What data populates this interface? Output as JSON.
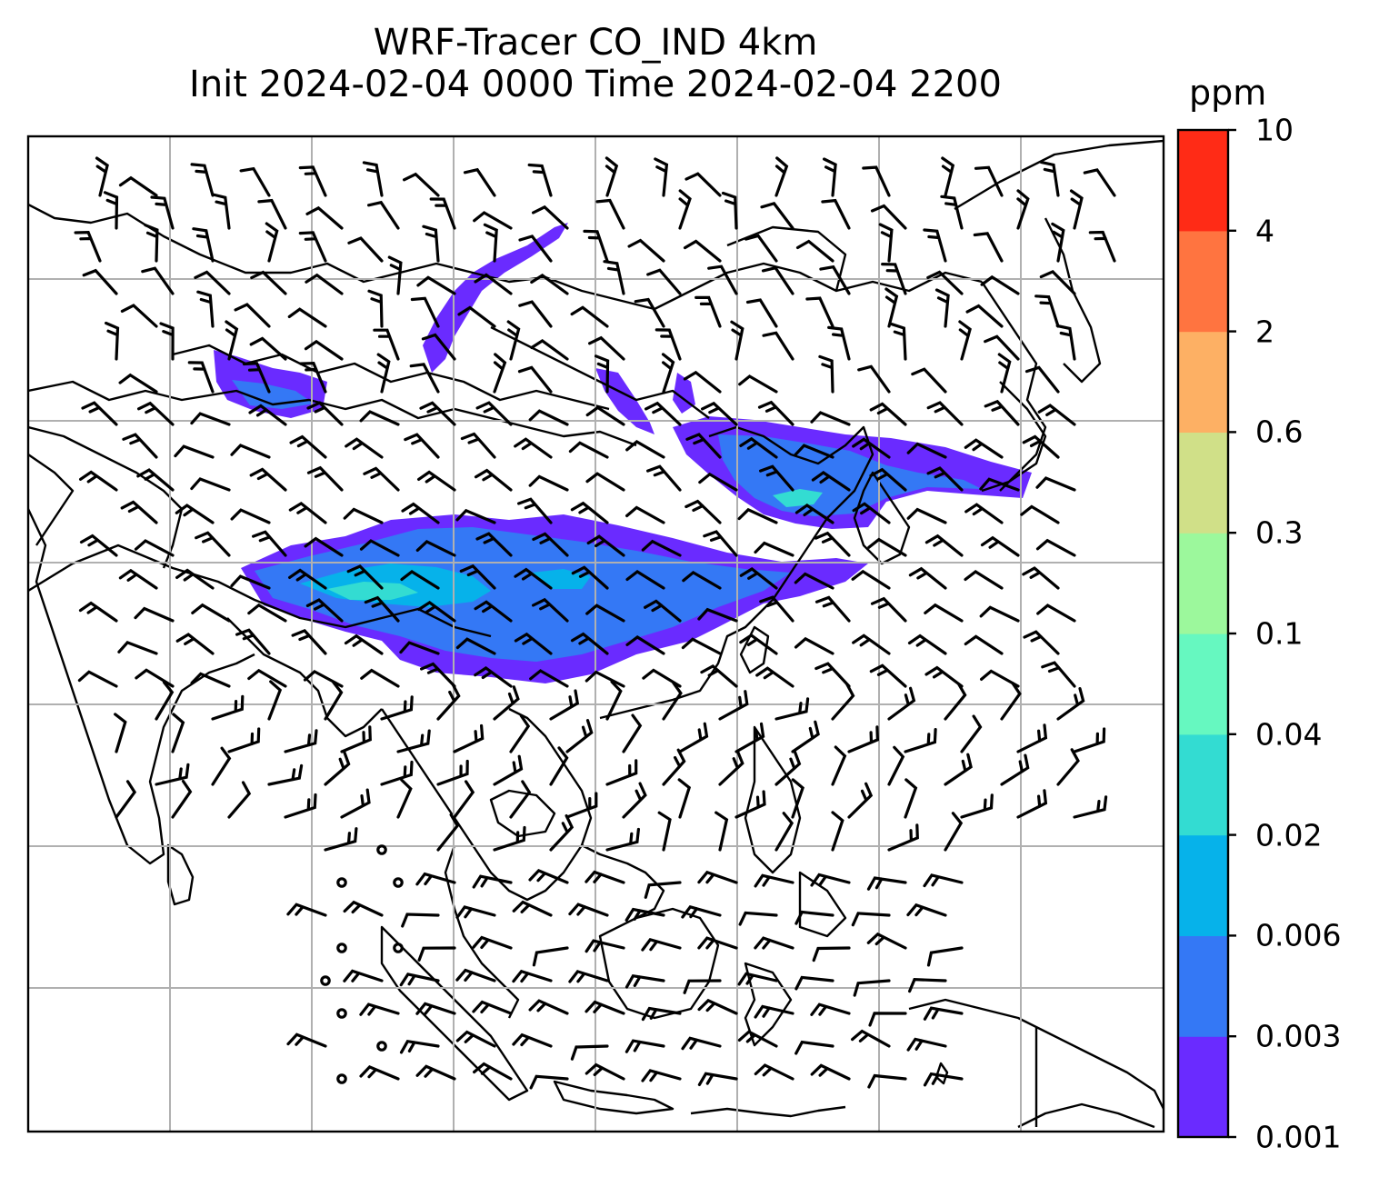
{
  "title": {
    "line1": "WRF-Tracer CO_IND 4km",
    "line2": "Init 2024-02-04 0000 Time 2024-02-04 2200"
  },
  "colorbar": {
    "unit": "ppm",
    "ticks": [
      "0.001",
      "0.003",
      "0.006",
      "0.02",
      "0.04",
      "0.1",
      "0.3",
      "0.6",
      "2",
      "4",
      "10"
    ],
    "colors": [
      "#6a2bff",
      "#3478f5",
      "#06b2ea",
      "#33dcd2",
      "#66f8c0",
      "#9cf89c",
      "#d0e088",
      "#fdb064",
      "#ff7440",
      "#ff2b16"
    ]
  },
  "map": {
    "gridlines": true,
    "coastline_color": "#000000",
    "grid_color": "#b0b0b0"
  },
  "plume_colors": {
    "faint": "#6a2bff",
    "low": "#3478f5",
    "mid": "#06b2ea",
    "high": "#33dcd2"
  }
}
